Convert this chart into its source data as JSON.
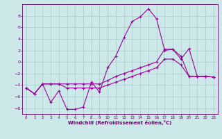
{
  "title": "",
  "xlabel": "Windchill (Refroidissement éolien,°C)",
  "background_color": "#cce8e8",
  "grid_color": "#aacccc",
  "line_color": "#990099",
  "ylim": [
    -9,
    10
  ],
  "xlim": [
    -0.5,
    23.5
  ],
  "yticks": [
    -8,
    -6,
    -4,
    -2,
    0,
    2,
    4,
    6,
    8
  ],
  "xticks": [
    0,
    1,
    2,
    3,
    4,
    5,
    6,
    7,
    8,
    9,
    10,
    11,
    12,
    13,
    14,
    15,
    16,
    17,
    18,
    19,
    20,
    21,
    22,
    23
  ],
  "line1_x": [
    0,
    1,
    2,
    3,
    4,
    5,
    6,
    7,
    8,
    9,
    10,
    11,
    12,
    13,
    14,
    15,
    16,
    17,
    18,
    19,
    20,
    21,
    22,
    23
  ],
  "line1_y": [
    -4.5,
    -5.5,
    -3.8,
    -7.0,
    -5.0,
    -8.2,
    -8.2,
    -7.8,
    -3.5,
    -5.2,
    -1.0,
    1.0,
    4.2,
    7.0,
    7.8,
    9.2,
    7.5,
    2.0,
    2.2,
    0.5,
    2.3,
    -2.5,
    -2.5,
    -2.6
  ],
  "line2_x": [
    0,
    1,
    2,
    3,
    4,
    5,
    6,
    7,
    8,
    9,
    10,
    11,
    12,
    13,
    14,
    15,
    16,
    17,
    18,
    19,
    20,
    21,
    22,
    23
  ],
  "line2_y": [
    -4.5,
    -5.5,
    -3.8,
    -3.8,
    -3.8,
    -3.8,
    -3.8,
    -3.8,
    -3.8,
    -3.8,
    -3.2,
    -2.5,
    -2.0,
    -1.5,
    -1.0,
    -0.5,
    0.0,
    2.2,
    2.2,
    1.0,
    -2.5,
    -2.5,
    -2.5,
    -2.6
  ],
  "line3_x": [
    0,
    1,
    2,
    3,
    4,
    5,
    6,
    7,
    8,
    9,
    10,
    11,
    12,
    13,
    14,
    15,
    16,
    17,
    18,
    19,
    20,
    21,
    22,
    23
  ],
  "line3_y": [
    -4.5,
    -5.5,
    -3.8,
    -3.8,
    -3.8,
    -4.5,
    -4.5,
    -4.5,
    -4.5,
    -4.5,
    -4.0,
    -3.5,
    -3.0,
    -2.5,
    -2.0,
    -1.5,
    -1.0,
    0.5,
    0.5,
    -0.5,
    -2.5,
    -2.5,
    -2.5,
    -2.6
  ],
  "tick_fontsize": 4.5,
  "xlabel_fontsize": 5.0
}
